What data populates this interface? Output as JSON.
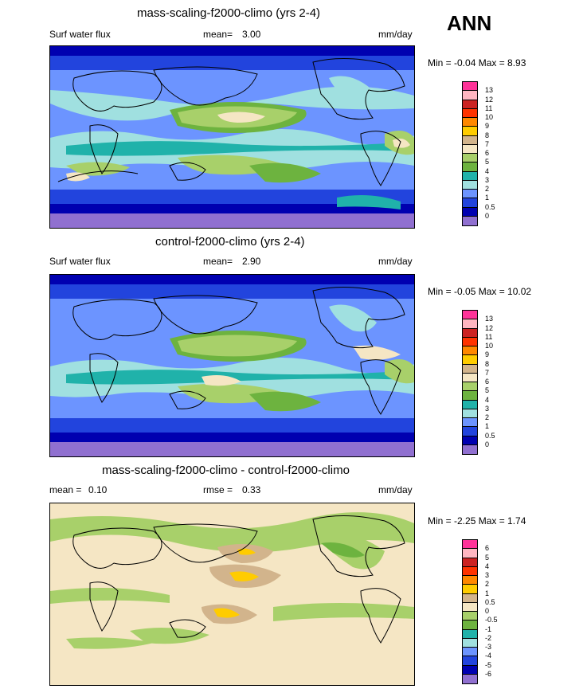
{
  "season": "ANN",
  "panels": [
    {
      "title": "mass-scaling-f2000-climo (yrs 2-4)",
      "left_label": "Surf water flux",
      "mean_label": "mean=",
      "mean_value": "3.00",
      "units": "mm/day",
      "minmax_text": "Min = -0.04 Max = 8.93",
      "colorbar": {
        "labels": [
          "13",
          "12",
          "11",
          "10",
          "9",
          "8",
          "7",
          "6",
          "5",
          "4",
          "3",
          "2",
          "1",
          "0.5",
          "0"
        ],
        "colors": [
          "#ff3399",
          "#ffb6c1",
          "#cc2222",
          "#ff3300",
          "#ff8800",
          "#ffcc00",
          "#d2b48c",
          "#f5e6c4",
          "#a8d06a",
          "#6db33f",
          "#20b2aa",
          "#a0e0e0",
          "#6c94ff",
          "#2244dd",
          "#0000b0",
          "#9070d0"
        ]
      },
      "chart_data": {
        "type": "heatmap",
        "variable": "Surf water flux",
        "units": "mm/day",
        "mean": 3.0,
        "min": -0.04,
        "max": 8.93,
        "levels": [
          0,
          0.5,
          1,
          2,
          3,
          4,
          5,
          6,
          7,
          8,
          9,
          10,
          11,
          12,
          13
        ]
      }
    },
    {
      "title": "control-f2000-climo (yrs 2-4)",
      "left_label": "Surf water flux",
      "mean_label": "mean=",
      "mean_value": "2.90",
      "units": "mm/day",
      "minmax_text": "Min = -0.05 Max = 10.02",
      "colorbar": {
        "labels": [
          "13",
          "12",
          "11",
          "10",
          "9",
          "8",
          "7",
          "6",
          "5",
          "4",
          "3",
          "2",
          "1",
          "0.5",
          "0"
        ],
        "colors": [
          "#ff3399",
          "#ffb6c1",
          "#cc2222",
          "#ff3300",
          "#ff8800",
          "#ffcc00",
          "#d2b48c",
          "#f5e6c4",
          "#a8d06a",
          "#6db33f",
          "#20b2aa",
          "#a0e0e0",
          "#6c94ff",
          "#2244dd",
          "#0000b0",
          "#9070d0"
        ]
      },
      "chart_data": {
        "type": "heatmap",
        "variable": "Surf water flux",
        "units": "mm/day",
        "mean": 2.9,
        "min": -0.05,
        "max": 10.02,
        "levels": [
          0,
          0.5,
          1,
          2,
          3,
          4,
          5,
          6,
          7,
          8,
          9,
          10,
          11,
          12,
          13
        ]
      }
    },
    {
      "title": "mass-scaling-f2000-climo - control-f2000-climo",
      "left_label": "mean =",
      "left_value": "0.10",
      "mean_label": "rmse =",
      "mean_value": "0.33",
      "units": "mm/day",
      "minmax_text": "Min = -2.25 Max = 1.74",
      "colorbar": {
        "labels": [
          "6",
          "5",
          "4",
          "3",
          "2",
          "1",
          "0.5",
          "0",
          "-0.5",
          "-1",
          "-2",
          "-3",
          "-4",
          "-5",
          "-6"
        ],
        "colors": [
          "#ff3399",
          "#ffb6c1",
          "#cc2222",
          "#ff3300",
          "#ff8800",
          "#ffcc00",
          "#d2b48c",
          "#f5e6c4",
          "#a8d06a",
          "#6db33f",
          "#20b2aa",
          "#a0e0e0",
          "#6c94ff",
          "#2244dd",
          "#0000b0",
          "#9070d0"
        ]
      },
      "chart_data": {
        "type": "heatmap",
        "variable": "difference",
        "units": "mm/day",
        "mean": 0.1,
        "rmse": 0.33,
        "min": -2.25,
        "max": 1.74,
        "levels": [
          -6,
          -5,
          -4,
          -3,
          -2,
          -1,
          -0.5,
          0,
          0.5,
          1,
          2,
          3,
          4,
          5,
          6
        ]
      }
    }
  ]
}
